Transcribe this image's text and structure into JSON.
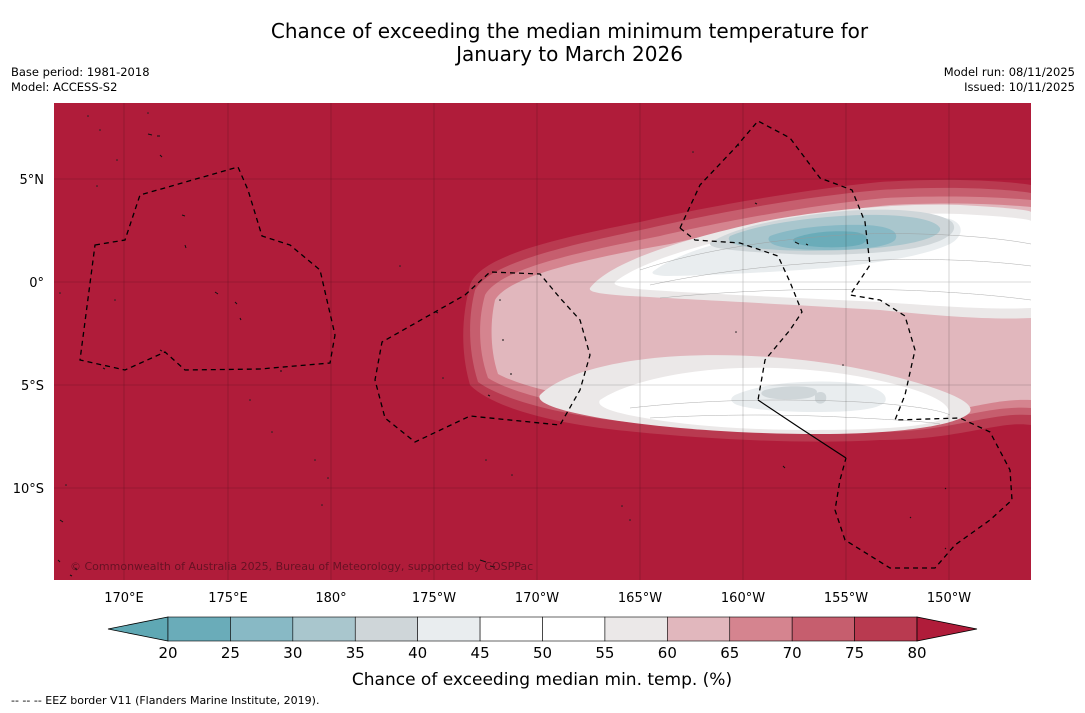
{
  "title": {
    "line1": "Chance of exceeding the median minimum temperature for",
    "line2": "January to March 2026"
  },
  "meta": {
    "base_period": "Base period: 1981-2018",
    "model": "Model: ACCESS-S2",
    "model_run": "Model run: 08/11/2025",
    "issued": "Issued: 10/11/2025"
  },
  "map": {
    "lat_labels": [
      "5°N",
      "0°",
      "5°S",
      "10°S"
    ],
    "lon_labels": [
      "170°E",
      "175°E",
      "180°",
      "175°W",
      "170°W",
      "165°W",
      "160°W",
      "155°W",
      "150°W"
    ],
    "copyright": "© Commonwealth of Australia 2025, Bureau of Meteorology, supported by COSPPac"
  },
  "colorbar": {
    "ticks": [
      "20",
      "25",
      "30",
      "35",
      "40",
      "45",
      "50",
      "55",
      "60",
      "65",
      "70",
      "75",
      "80"
    ],
    "colors": [
      "#5fa8b4",
      "#6aacb9",
      "#88b9c5",
      "#a9c6cd",
      "#cfd6d9",
      "#e9edef",
      "#ffffff",
      "#ffffff",
      "#ebe8e8",
      "#e1b7bd",
      "#d5848f",
      "#c65e6e",
      "#b93a50",
      "#b01c3a"
    ],
    "label": "Chance of exceeding median min. temp. (%)"
  },
  "footnote": "--  --  -- EEZ border V11 (Flanders Marine Institute, 2019)."
}
